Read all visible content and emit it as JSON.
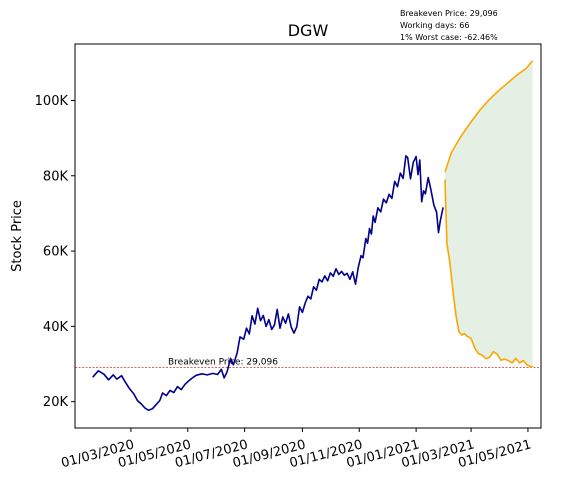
{
  "chart_data": {
    "type": "line",
    "title": "DGW",
    "xlabel": "",
    "ylabel": "Stock Price",
    "x_ticks": [
      "01/03/2020",
      "01/05/2020",
      "01/07/2020",
      "01/09/2020",
      "01/11/2020",
      "01/01/2021",
      "01/03/2021",
      "01/05/2021"
    ],
    "y_ticks": [
      "20K",
      "40K",
      "60K",
      "80K",
      "100K"
    ],
    "ylim": [
      13000,
      115000
    ],
    "xlim": [
      "2020-01-01",
      "2021-05-15"
    ],
    "grid": false,
    "annotations": {
      "breakeven": "Breakeven Price: 29,096",
      "working_days": "Working days: 66",
      "worst_case": "1% Worst case: -62.46%"
    },
    "breakeven_line": {
      "y": 29096,
      "label": "Breakeven Price: 29,096",
      "color": "#cc3333"
    },
    "series": [
      {
        "color": "#00008b",
        "points": [
          [
            "2020-01-20",
            26500
          ],
          [
            "2020-01-26",
            28200
          ],
          [
            "2020-02-01",
            27300
          ],
          [
            "2020-02-06",
            25800
          ],
          [
            "2020-02-11",
            27100
          ],
          [
            "2020-02-15",
            26000
          ],
          [
            "2020-02-20",
            26900
          ],
          [
            "2020-02-24",
            25200
          ],
          [
            "2020-02-28",
            23600
          ],
          [
            "2020-03-04",
            22100
          ],
          [
            "2020-03-08",
            20300
          ],
          [
            "2020-03-12",
            19400
          ],
          [
            "2020-03-16",
            18300
          ],
          [
            "2020-03-20",
            17700
          ],
          [
            "2020-03-24",
            18100
          ],
          [
            "2020-03-28",
            19200
          ],
          [
            "2020-04-01",
            20300
          ],
          [
            "2020-04-04",
            22300
          ],
          [
            "2020-04-08",
            21600
          ],
          [
            "2020-04-12",
            23000
          ],
          [
            "2020-04-16",
            22400
          ],
          [
            "2020-04-20",
            24000
          ],
          [
            "2020-04-24",
            23200
          ],
          [
            "2020-04-28",
            24600
          ],
          [
            "2020-05-02",
            25500
          ],
          [
            "2020-05-06",
            26300
          ],
          [
            "2020-05-10",
            27000
          ],
          [
            "2020-05-16",
            27400
          ],
          [
            "2020-05-22",
            27100
          ],
          [
            "2020-05-28",
            27500
          ],
          [
            "2020-06-02",
            27200
          ],
          [
            "2020-06-06",
            28600
          ],
          [
            "2020-06-09",
            26300
          ],
          [
            "2020-06-12",
            27800
          ],
          [
            "2020-06-16",
            31500
          ],
          [
            "2020-06-19",
            29800
          ],
          [
            "2020-06-23",
            33000
          ],
          [
            "2020-06-26",
            37200
          ],
          [
            "2020-06-30",
            36600
          ],
          [
            "2020-07-03",
            39500
          ],
          [
            "2020-07-06",
            38000
          ],
          [
            "2020-07-09",
            42800
          ],
          [
            "2020-07-12",
            40600
          ],
          [
            "2020-07-15",
            44800
          ],
          [
            "2020-07-18",
            41500
          ],
          [
            "2020-07-21",
            42900
          ],
          [
            "2020-07-24",
            40000
          ],
          [
            "2020-07-27",
            41800
          ],
          [
            "2020-07-30",
            39200
          ],
          [
            "2020-08-02",
            40300
          ],
          [
            "2020-08-05",
            44500
          ],
          [
            "2020-08-08",
            39500
          ],
          [
            "2020-08-11",
            42500
          ],
          [
            "2020-08-14",
            40800
          ],
          [
            "2020-08-17",
            43300
          ],
          [
            "2020-08-20",
            39800
          ],
          [
            "2020-08-23",
            38200
          ],
          [
            "2020-08-26",
            39900
          ],
          [
            "2020-08-29",
            45200
          ],
          [
            "2020-09-01",
            43700
          ],
          [
            "2020-09-04",
            46200
          ],
          [
            "2020-09-07",
            48000
          ],
          [
            "2020-09-10",
            47300
          ],
          [
            "2020-09-13",
            50500
          ],
          [
            "2020-09-16",
            49600
          ],
          [
            "2020-09-19",
            52500
          ],
          [
            "2020-09-22",
            51800
          ],
          [
            "2020-09-25",
            53400
          ],
          [
            "2020-09-28",
            52100
          ],
          [
            "2020-10-01",
            54200
          ],
          [
            "2020-10-04",
            53300
          ],
          [
            "2020-10-07",
            55300
          ],
          [
            "2020-10-10",
            53800
          ],
          [
            "2020-10-13",
            54600
          ],
          [
            "2020-10-16",
            53600
          ],
          [
            "2020-10-19",
            54100
          ],
          [
            "2020-10-22",
            52500
          ],
          [
            "2020-10-25",
            54500
          ],
          [
            "2020-10-28",
            51200
          ],
          [
            "2020-10-31",
            55700
          ],
          [
            "2020-11-03",
            58800
          ],
          [
            "2020-11-05",
            58200
          ],
          [
            "2020-11-08",
            63300
          ],
          [
            "2020-11-10",
            62100
          ],
          [
            "2020-11-12",
            66000
          ],
          [
            "2020-11-14",
            64500
          ],
          [
            "2020-11-16",
            69300
          ],
          [
            "2020-11-18",
            67600
          ],
          [
            "2020-11-21",
            71500
          ],
          [
            "2020-11-24",
            70400
          ],
          [
            "2020-11-27",
            73800
          ],
          [
            "2020-11-30",
            72800
          ],
          [
            "2020-12-03",
            75100
          ],
          [
            "2020-12-06",
            74000
          ],
          [
            "2020-12-09",
            78500
          ],
          [
            "2020-12-12",
            77100
          ],
          [
            "2020-12-15",
            80700
          ],
          [
            "2020-12-18",
            79300
          ],
          [
            "2020-12-21",
            85300
          ],
          [
            "2020-12-23",
            84800
          ],
          [
            "2020-12-26",
            79200
          ],
          [
            "2020-12-29",
            83600
          ],
          [
            "2021-01-01",
            85100
          ],
          [
            "2021-01-03",
            80300
          ],
          [
            "2021-01-05",
            84200
          ],
          [
            "2021-01-07",
            73100
          ],
          [
            "2021-01-09",
            76000
          ],
          [
            "2021-01-11",
            75200
          ],
          [
            "2021-01-14",
            79500
          ],
          [
            "2021-01-17",
            76200
          ],
          [
            "2021-01-20",
            72300
          ],
          [
            "2021-01-23",
            70300
          ],
          [
            "2021-01-25",
            64900
          ],
          [
            "2021-01-27",
            68000
          ],
          [
            "2021-01-30",
            71600
          ]
        ]
      },
      {
        "color": "#ffa500",
        "points": [
          [
            "2021-02-01",
            81000
          ],
          [
            "2021-02-08",
            86200
          ],
          [
            "2021-02-18",
            90400
          ],
          [
            "2021-02-28",
            94000
          ],
          [
            "2021-03-10",
            97300
          ],
          [
            "2021-03-20",
            100100
          ],
          [
            "2021-03-30",
            102500
          ],
          [
            "2021-04-09",
            104600
          ],
          [
            "2021-04-19",
            106700
          ],
          [
            "2021-04-29",
            108500
          ],
          [
            "2021-05-06",
            110600
          ]
        ]
      },
      {
        "color": "#ffa500",
        "points": [
          [
            "2021-02-01",
            79000
          ],
          [
            "2021-02-03",
            62000
          ],
          [
            "2021-02-06",
            57300
          ],
          [
            "2021-02-10",
            48300
          ],
          [
            "2021-02-13",
            42500
          ],
          [
            "2021-02-16",
            38500
          ],
          [
            "2021-02-19",
            37700
          ],
          [
            "2021-02-22",
            38100
          ],
          [
            "2021-02-25",
            37300
          ],
          [
            "2021-03-01",
            36800
          ],
          [
            "2021-03-05",
            34200
          ],
          [
            "2021-03-09",
            32700
          ],
          [
            "2021-03-13",
            32300
          ],
          [
            "2021-03-17",
            31400
          ],
          [
            "2021-03-21",
            31800
          ],
          [
            "2021-03-25",
            33300
          ],
          [
            "2021-03-29",
            32600
          ],
          [
            "2021-04-02",
            31000
          ],
          [
            "2021-04-06",
            31300
          ],
          [
            "2021-04-10",
            30900
          ],
          [
            "2021-04-14",
            30300
          ],
          [
            "2021-04-18",
            31500
          ],
          [
            "2021-04-22",
            30300
          ],
          [
            "2021-04-26",
            30900
          ],
          [
            "2021-04-30",
            29800
          ],
          [
            "2021-05-04",
            29200
          ],
          [
            "2021-05-06",
            29500
          ]
        ]
      }
    ],
    "range_fill_color": "#e3f0e3"
  }
}
